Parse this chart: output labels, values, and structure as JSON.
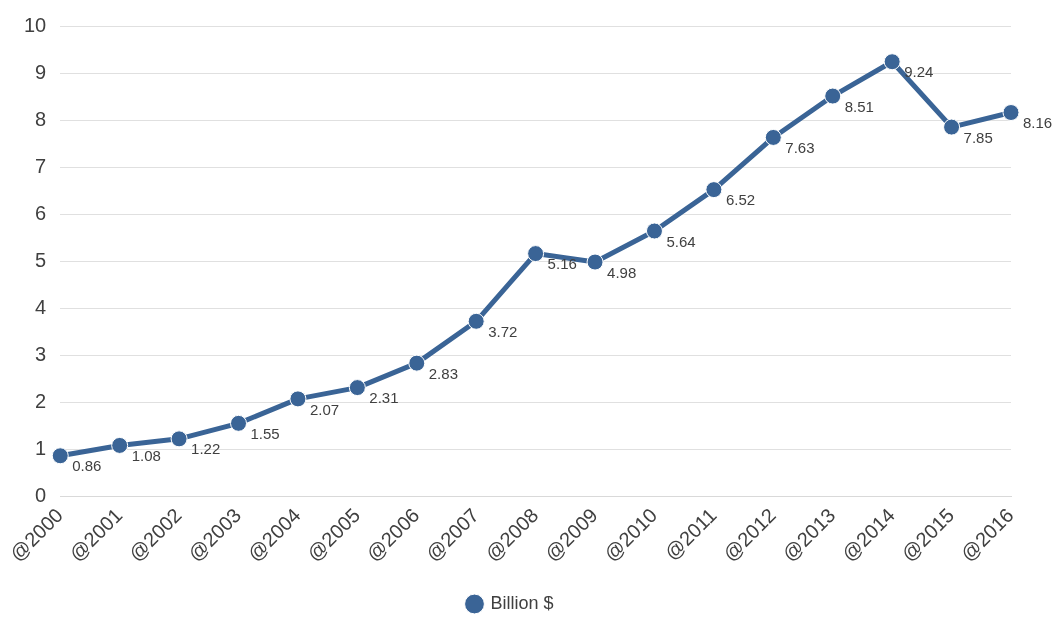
{
  "chart_data": {
    "type": "line",
    "categories": [
      "@2000",
      "@2001",
      "@2002",
      "@2003",
      "@2004",
      "@2005",
      "@2006",
      "@2007",
      "@2008",
      "@2009",
      "@2010",
      "@2011",
      "@2012",
      "@2013",
      "@2014",
      "@2015",
      "@2016"
    ],
    "series": [
      {
        "name": "Billion $",
        "color": "#3a6496",
        "values": [
          0.86,
          1.08,
          1.22,
          1.55,
          2.07,
          2.31,
          2.83,
          3.72,
          5.16,
          4.98,
          5.64,
          6.52,
          7.63,
          8.51,
          9.24,
          7.85,
          8.16
        ]
      }
    ],
    "ylim": [
      0,
      10
    ],
    "yticks": [
      0,
      1,
      2,
      3,
      4,
      5,
      6,
      7,
      8,
      9,
      10
    ],
    "grid": "y",
    "legend": "bottom",
    "marker": "circle",
    "line_style": "solid",
    "data_labels": true
  }
}
